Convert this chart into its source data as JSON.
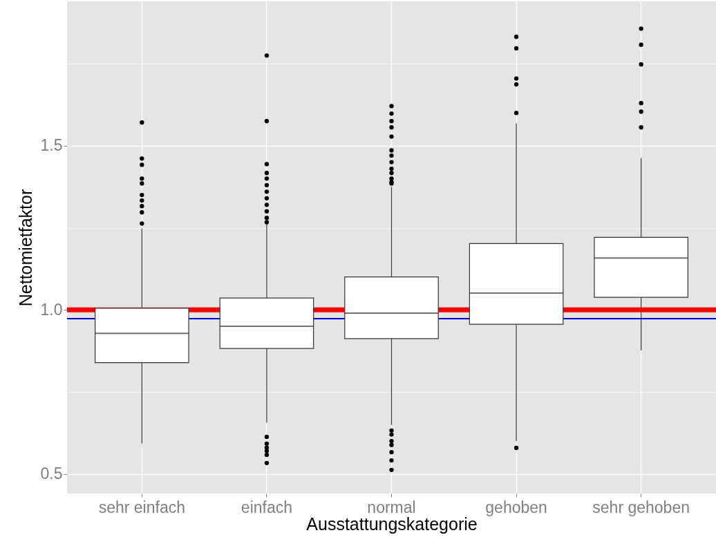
{
  "chart_data": {
    "type": "box",
    "xlabel": "Ausstattungskategorie",
    "ylabel": "Nettomietfaktor",
    "categories": [
      "sehr einfach",
      "einfach",
      "normal",
      "gehoben",
      "sehr gehoben"
    ],
    "boxes": [
      {
        "low": 0.593,
        "q1": 0.839,
        "median": 0.928,
        "q3": 1.005,
        "high": 1.248,
        "outliers": [
          1.571,
          1.461,
          1.442,
          1.4,
          1.385,
          1.35,
          1.333,
          1.316,
          1.297,
          1.263
        ]
      },
      {
        "low": 0.656,
        "q1": 0.882,
        "median": 0.95,
        "q3": 1.036,
        "high": 1.263,
        "outliers": [
          1.775,
          1.575,
          1.444,
          1.417,
          1.4,
          1.38,
          1.36,
          1.34,
          1.32,
          1.3,
          1.28,
          1.267,
          0.613,
          0.592,
          0.58,
          0.57,
          0.558,
          0.533
        ]
      },
      {
        "low": 0.649,
        "q1": 0.912,
        "median": 0.99,
        "q3": 1.1,
        "high": 1.375,
        "outliers": [
          1.621,
          1.598,
          1.575,
          1.556,
          1.528,
          1.486,
          1.47,
          1.45,
          1.43,
          1.417,
          1.4,
          1.39,
          1.385,
          0.632,
          0.62,
          0.6,
          0.588,
          0.566,
          0.541,
          0.512
        ]
      },
      {
        "low": 0.6,
        "q1": 0.956,
        "median": 1.051,
        "q3": 1.202,
        "high": 1.568,
        "outliers": [
          1.832,
          1.797,
          1.705,
          1.687,
          1.6,
          0.579
        ]
      },
      {
        "low": 0.876,
        "q1": 1.038,
        "median": 1.158,
        "q3": 1.221,
        "high": 1.463,
        "outliers": [
          1.857,
          1.808,
          1.748,
          1.63,
          1.604,
          1.556
        ]
      }
    ],
    "ylim": [
      0.44,
      1.94
    ],
    "yticks": [
      0.5,
      {
        "value": 0.75,
        "label": null
      },
      {
        "value": 1,
        "label": "1.0"
      },
      {
        "value": 1.25,
        "label": null
      },
      1.5,
      {
        "value": 1.75,
        "label": null
      }
    ],
    "ref_lines": [
      {
        "axis": "y",
        "value": 1,
        "color": "#ff0000"
      },
      {
        "axis": "y",
        "value": 0.973,
        "color": "#0000ff"
      }
    ],
    "grid": true
  }
}
